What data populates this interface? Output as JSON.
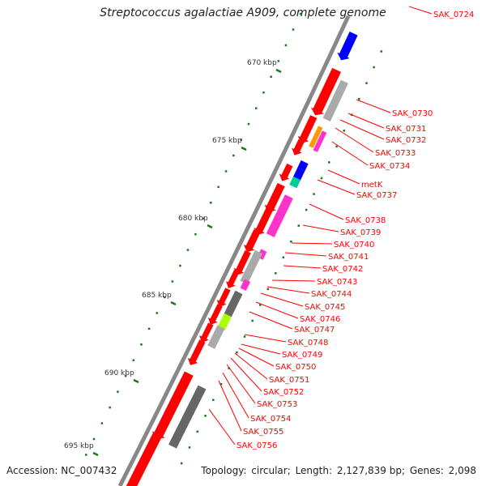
{
  "title": "Streptococcus agalactiae A909, complete genome",
  "accession_label": "Accession:",
  "accession": "NC_007432",
  "topology_label": "Topology:",
  "topology": "circular;",
  "length_label": "Length:",
  "length": "2,127,839 bp;",
  "genes_label": "Genes:",
  "genes": "2,098",
  "colors": {
    "backbone": "#888888",
    "gene_red": "#ff0000",
    "label": "#ff0000",
    "tick": "#1a7a1a",
    "blue": "#0000ff",
    "magenta": "#ff33cc",
    "orange": "#ff9900",
    "gray": "#aaaaaa",
    "dark_gray": "#666666",
    "teal": "#00cc99",
    "lime": "#aaff00"
  },
  "scale_labels": [
    "670 kbp",
    "675 kbp",
    "680 kbp",
    "685 kbp",
    "690 kbp",
    "695 kbp"
  ],
  "gene_labels": [
    "SAK_0724",
    "SAK_0730",
    "SAK_0731",
    "SAK_0732",
    "SAK_0733",
    "SAK_0734",
    "metK",
    "SAK_0737",
    "SAK_0738",
    "SAK_0739",
    "SAK_0740",
    "SAK_0741",
    "SAK_0742",
    "SAK_0743",
    "SAK_0744",
    "SAK_0745",
    "SAK_0746",
    "SAK_0747",
    "SAK_0748",
    "SAK_0749",
    "SAK_0750",
    "SAK_0751",
    "SAK_0752",
    "SAK_0753",
    "SAK_0754",
    "SAK_0755",
    "SAK_0756"
  ]
}
